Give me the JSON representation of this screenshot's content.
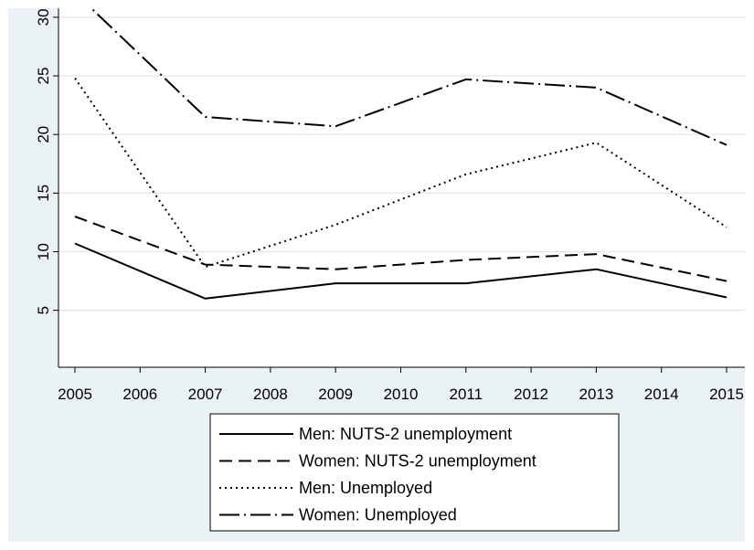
{
  "chart_data": {
    "type": "line",
    "title": "",
    "xlabel": "",
    "ylabel": "",
    "x": [
      2005,
      2007,
      2009,
      2011,
      2013,
      2015
    ],
    "xticks": [
      2005,
      2006,
      2007,
      2008,
      2009,
      2010,
      2011,
      2012,
      2013,
      2014,
      2015
    ],
    "yticks": [
      5,
      10,
      15,
      20,
      25,
      30
    ],
    "xlim": [
      2005,
      2015
    ],
    "ylim": [
      4,
      33
    ],
    "grid": true,
    "legend_position": "bottom",
    "series": [
      {
        "name": "Men: NUTS-2 unemployment",
        "style": "solid",
        "color": "#000000",
        "values": [
          10.7,
          6.0,
          7.3,
          7.3,
          8.5,
          6.1
        ]
      },
      {
        "name": "Women: NUTS-2 unemployment",
        "style": "dashed",
        "color": "#000000",
        "values": [
          13.0,
          8.9,
          8.5,
          9.3,
          9.8,
          7.5
        ]
      },
      {
        "name": "Men: Unemployed",
        "style": "dotted",
        "color": "#000000",
        "values": [
          24.8,
          8.7,
          12.3,
          16.6,
          19.3,
          12.1
        ]
      },
      {
        "name": "Women: Unemployed",
        "style": "dashdot",
        "color": "#000000",
        "values": [
          32.1,
          21.5,
          20.7,
          24.7,
          24.0,
          19.1
        ]
      }
    ]
  }
}
